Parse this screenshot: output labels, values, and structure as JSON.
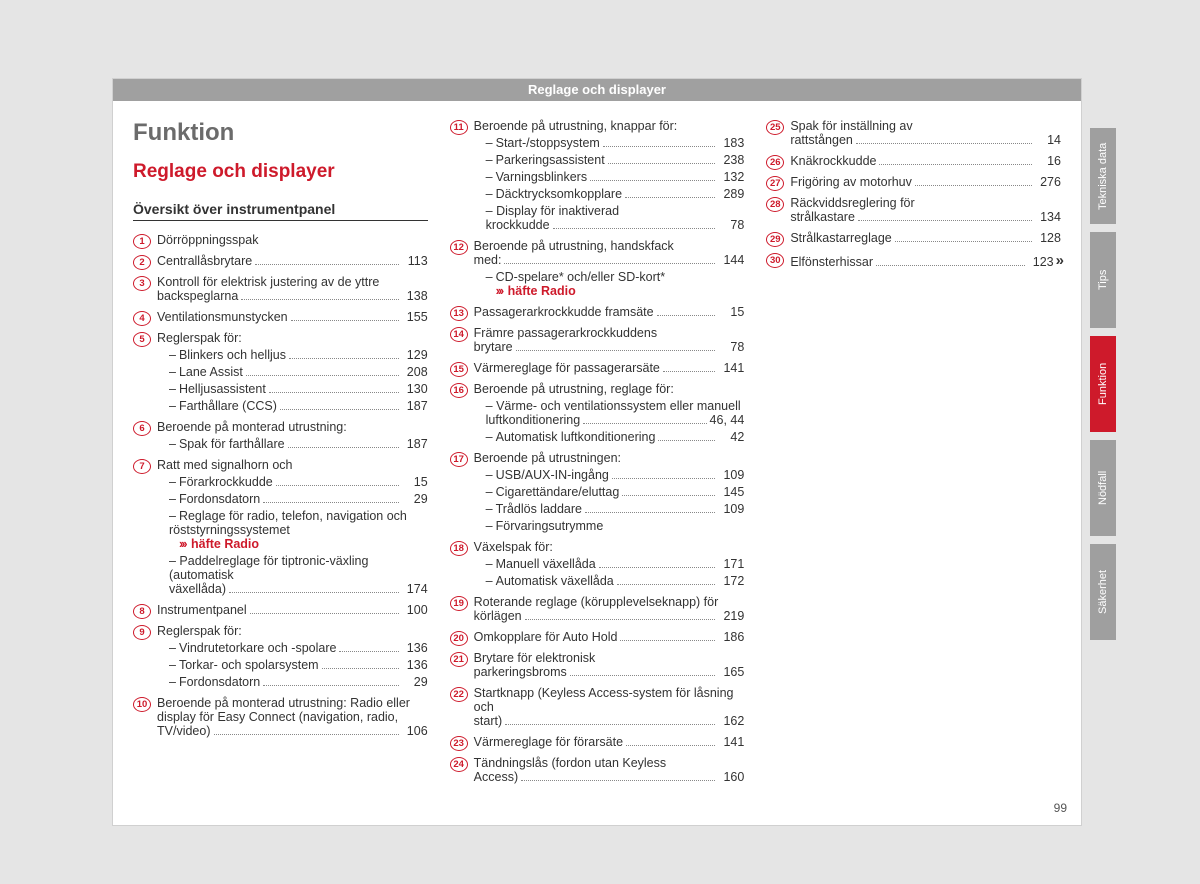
{
  "colors": {
    "page_bg": "#e5e5e5",
    "card_bg": "#ffffff",
    "header_band": "#a0a0a0",
    "accent_red": "#ce1a2b",
    "text": "#333333",
    "tab_gray": "#9f9f9f"
  },
  "header": "Reglage och displayer",
  "h1": "Funktion",
  "h2": "Reglage och displayer",
  "h3": "Översikt över instrumentpanel",
  "page_number": "99",
  "tabs": [
    {
      "label": "Tekniska data",
      "active": false
    },
    {
      "label": "Tips",
      "active": false
    },
    {
      "label": "Funktion",
      "active": true
    },
    {
      "label": "Nödfall",
      "active": false
    },
    {
      "label": "Säkerhet",
      "active": false
    }
  ],
  "items": [
    {
      "n": 1,
      "label": "Dörröppningsspak",
      "page": ""
    },
    {
      "n": 2,
      "label": "Centrallåsbrytare",
      "page": "113"
    },
    {
      "n": 3,
      "label": "Kontroll för elektrisk justering av de yttre backspeglarna",
      "page": "138",
      "wrap": true
    },
    {
      "n": 4,
      "label": "Ventilationsmunstycken",
      "page": "155"
    },
    {
      "n": 5,
      "label": "Reglerspak för:",
      "page": "",
      "subs": [
        {
          "label": "Blinkers och helljus",
          "page": "129"
        },
        {
          "label": "Lane Assist",
          "page": "208"
        },
        {
          "label": "Helljusassistent",
          "page": "130"
        },
        {
          "label": "Farthållare (CCS)",
          "page": "187"
        }
      ]
    },
    {
      "n": 6,
      "label": "Beroende på monterad utrustning:",
      "page": "",
      "subs": [
        {
          "label": "Spak för farthållare",
          "page": "187"
        }
      ]
    },
    {
      "n": 7,
      "label": "Ratt med signalhorn och",
      "page": "",
      "subs": [
        {
          "label": "Förarkrockkudde",
          "page": "15"
        },
        {
          "label": "Fordonsdatorn",
          "page": "29"
        },
        {
          "label": "Reglage för radio, telefon, navigation och röststyrningssystemet",
          "ref": "häfte Radio",
          "wrap": true
        },
        {
          "label": "Paddelreglage för tiptronic-växling (automatisk växellåda)",
          "page": "174",
          "wrap": true
        }
      ]
    },
    {
      "n": 8,
      "label": "Instrumentpanel",
      "page": "100"
    },
    {
      "n": 9,
      "label": "Reglerspak för:",
      "page": "",
      "subs": [
        {
          "label": "Vindrutetorkare och -spolare",
          "page": "136"
        },
        {
          "label": "Torkar- och spolarsystem",
          "page": "136"
        },
        {
          "label": "Fordonsdatorn",
          "page": "29"
        }
      ]
    },
    {
      "n": 10,
      "label": "Beroende på monterad utrustning: Radio eller display för Easy Connect (navigation, radio, TV/video)",
      "page": "106",
      "wrap": true
    },
    {
      "n": 11,
      "label": "Beroende på utrustning, knappar för:",
      "page": "",
      "wrap": true,
      "subs": [
        {
          "label": "Start-/stoppsystem",
          "page": "183"
        },
        {
          "label": "Parkeringsassistent",
          "page": "238"
        },
        {
          "label": "Varningsblinkers",
          "page": "132"
        },
        {
          "label": "Däcktrycksomkopplare",
          "page": "289"
        },
        {
          "label": "Display för inaktiverad krockkudde",
          "page": "78",
          "wrap": true
        }
      ]
    },
    {
      "n": 12,
      "label": "Beroende på utrustning, handskfack med:",
      "page": "144",
      "wrap": true,
      "subs": [
        {
          "label": "CD-spelare* och/eller SD-kort*",
          "ref": "häfte Radio"
        }
      ]
    },
    {
      "n": 13,
      "label": "Passagerarkrockkudde framsäte",
      "page": "15"
    },
    {
      "n": 14,
      "label": "Främre passagerarkrockkuddens brytare",
      "page": "78",
      "wrap": true
    },
    {
      "n": 15,
      "label": "Värmereglage för passagerarsäte",
      "page": "141"
    },
    {
      "n": 16,
      "label": "Beroende på utrustning, reglage för:",
      "page": "",
      "wrap": true,
      "subs": [
        {
          "label": "Värme- och ventilationssystem eller manuell luftkonditionering",
          "page": "46, 44",
          "wrap": true
        },
        {
          "label": "Automatisk luftkonditionering",
          "page": "42"
        }
      ]
    },
    {
      "n": 17,
      "label": "Beroende på utrustningen:",
      "page": "",
      "subs": [
        {
          "label": "USB/AUX-IN-ingång",
          "page": "109"
        },
        {
          "label": "Cigarettändare/eluttag",
          "page": "145"
        },
        {
          "label": "Trådlös laddare",
          "page": "109"
        },
        {
          "label": "Förvaringsutrymme",
          "page": ""
        }
      ]
    },
    {
      "n": 18,
      "label": "Växelspak för:",
      "page": "",
      "subs": [
        {
          "label": "Manuell växellåda",
          "page": "171"
        },
        {
          "label": "Automatisk växellåda",
          "page": "172"
        }
      ]
    },
    {
      "n": 19,
      "label": "Roterande reglage (körupplevelseknapp) för körlägen",
      "page": "219",
      "wrap": true
    },
    {
      "n": 20,
      "label": "Omkopplare för Auto Hold",
      "page": "186"
    },
    {
      "n": 21,
      "label": "Brytare för elektronisk parkeringsbroms",
      "page": "165",
      "wrap": true
    },
    {
      "n": 22,
      "label": "Startknapp (Keyless Access-system för låsning och start)",
      "page": "162",
      "wrap": true
    },
    {
      "n": 23,
      "label": "Värmereglage för förarsäte",
      "page": "141"
    },
    {
      "n": 24,
      "label": "Tändningslås (fordon utan Keyless Access)",
      "page": "160",
      "wrap": true
    },
    {
      "n": 25,
      "label": "Spak för inställning av rattstången",
      "page": "14",
      "wrap": true
    },
    {
      "n": 26,
      "label": "Knäkrockkudde",
      "page": "16"
    },
    {
      "n": 27,
      "label": "Frigöring av motorhuv",
      "page": "276"
    },
    {
      "n": 28,
      "label": "Räckviddsreglering för strålkastare",
      "page": "134",
      "wrap": true
    },
    {
      "n": 29,
      "label": "Strålkastarreglage",
      "page": "128"
    },
    {
      "n": 30,
      "label": "Elfönsterhissar",
      "page": "123",
      "continues": true
    }
  ]
}
